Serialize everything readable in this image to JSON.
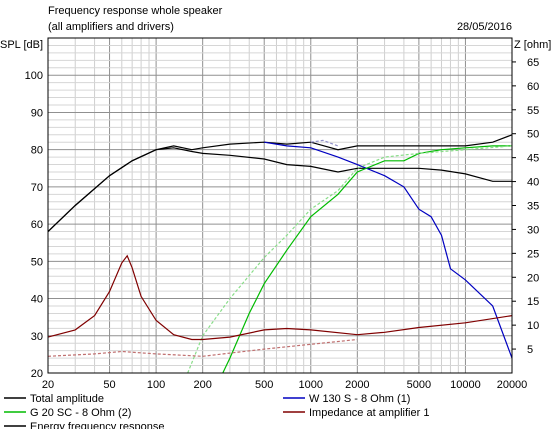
{
  "chart_data": {
    "type": "line",
    "title": "Frequency response whole speaker",
    "subtitle": "(all amplifiers and drivers)",
    "date": "28/05/2016",
    "ylabel_left": "SPL [dB]",
    "ylabel_right": "Z [ohm]",
    "x_scale": "log",
    "xlim": [
      20,
      20000
    ],
    "ylim_left": [
      20,
      110
    ],
    "ylim_right": [
      0,
      70
    ],
    "grid": true,
    "x_ticks": [
      {
        "v": 20,
        "label": "20"
      },
      {
        "v": 50,
        "label": "50"
      },
      {
        "v": 100,
        "label": "100"
      },
      {
        "v": 200,
        "label": "200"
      },
      {
        "v": 500,
        "label": "500"
      },
      {
        "v": 1000,
        "label": "1000"
      },
      {
        "v": 2000,
        "label": "2000"
      },
      {
        "v": 5000,
        "label": "5000"
      },
      {
        "v": 10000,
        "label": "10000"
      },
      {
        "v": 20000,
        "label": "20000"
      }
    ],
    "y_ticks_left": [
      {
        "v": 20,
        "label": "20"
      },
      {
        "v": 30,
        "label": "30"
      },
      {
        "v": 40,
        "label": "40"
      },
      {
        "v": 50,
        "label": "50"
      },
      {
        "v": 60,
        "label": "60"
      },
      {
        "v": 70,
        "label": "70"
      },
      {
        "v": 80,
        "label": "80"
      },
      {
        "v": 90,
        "label": "90"
      },
      {
        "v": 100,
        "label": "100"
      }
    ],
    "y_ticks_right": [
      {
        "v": 5,
        "label": "5"
      },
      {
        "v": 10,
        "label": "10"
      },
      {
        "v": 15,
        "label": "15"
      },
      {
        "v": 20,
        "label": "20"
      },
      {
        "v": 25,
        "label": "25"
      },
      {
        "v": 30,
        "label": "30"
      },
      {
        "v": 35,
        "label": "35"
      },
      {
        "v": 40,
        "label": "40"
      },
      {
        "v": 45,
        "label": "45"
      },
      {
        "v": 50,
        "label": "50"
      },
      {
        "v": 55,
        "label": "55"
      },
      {
        "v": 60,
        "label": "60"
      },
      {
        "v": 65,
        "label": "65"
      }
    ],
    "series": [
      {
        "name": "Total amplitude",
        "color": "#000000",
        "dash": false,
        "axis": "left",
        "points": [
          [
            20,
            58
          ],
          [
            30,
            65
          ],
          [
            50,
            73
          ],
          [
            70,
            77
          ],
          [
            100,
            80
          ],
          [
            130,
            81
          ],
          [
            170,
            80
          ],
          [
            200,
            80.5
          ],
          [
            300,
            81.5
          ],
          [
            500,
            82
          ],
          [
            700,
            81.5
          ],
          [
            1000,
            82
          ],
          [
            1500,
            80
          ],
          [
            2000,
            81
          ],
          [
            3000,
            81
          ],
          [
            5000,
            81
          ],
          [
            7000,
            81
          ],
          [
            10000,
            81
          ],
          [
            15000,
            82
          ],
          [
            20000,
            84
          ]
        ]
      },
      {
        "name": "Energy frequency response",
        "color": "#000000",
        "dash": false,
        "axis": "left",
        "points": [
          [
            20,
            58
          ],
          [
            30,
            65
          ],
          [
            50,
            73
          ],
          [
            70,
            77
          ],
          [
            100,
            80
          ],
          [
            130,
            80.5
          ],
          [
            170,
            79.5
          ],
          [
            200,
            79
          ],
          [
            300,
            78.5
          ],
          [
            500,
            77.5
          ],
          [
            700,
            76
          ],
          [
            1000,
            75.5
          ],
          [
            1500,
            74
          ],
          [
            2000,
            75
          ],
          [
            3000,
            75
          ],
          [
            5000,
            75
          ],
          [
            7000,
            74.5
          ],
          [
            10000,
            73.5
          ],
          [
            15000,
            71.5
          ],
          [
            20000,
            71.5
          ]
        ]
      },
      {
        "name": "W 130 S - 8 Ohm (1)",
        "color": "#0000c0",
        "dash": false,
        "axis": "left",
        "points": [
          [
            500,
            82
          ],
          [
            700,
            81
          ],
          [
            1000,
            80.5
          ],
          [
            1500,
            78
          ],
          [
            2000,
            76
          ],
          [
            3000,
            73
          ],
          [
            4000,
            70
          ],
          [
            5000,
            64
          ],
          [
            6000,
            62
          ],
          [
            7000,
            57
          ],
          [
            8000,
            48
          ],
          [
            10000,
            45
          ],
          [
            15000,
            38
          ],
          [
            20000,
            24
          ]
        ]
      },
      {
        "name": "G 20 SC - 8 Ohm (2)",
        "color": "#00bb00",
        "dash": false,
        "axis": "left",
        "points": [
          [
            270,
            20
          ],
          [
            300,
            24
          ],
          [
            400,
            36
          ],
          [
            500,
            44
          ],
          [
            700,
            53
          ],
          [
            1000,
            62
          ],
          [
            1500,
            68
          ],
          [
            2000,
            74
          ],
          [
            3000,
            77
          ],
          [
            4000,
            77
          ],
          [
            5000,
            79
          ],
          [
            7000,
            80
          ],
          [
            10000,
            80.5
          ],
          [
            15000,
            81
          ],
          [
            20000,
            81
          ]
        ]
      },
      {
        "name": "G 20 SC - 8 Ohm (2)",
        "color": "#88dd88",
        "dash": true,
        "axis": "left",
        "points": [
          [
            160,
            20
          ],
          [
            200,
            30
          ],
          [
            300,
            40
          ],
          [
            500,
            51
          ],
          [
            700,
            57
          ],
          [
            1000,
            64
          ],
          [
            1500,
            69
          ],
          [
            2000,
            75
          ],
          [
            3000,
            78
          ],
          [
            5000,
            79
          ],
          [
            10000,
            80
          ],
          [
            20000,
            81
          ]
        ]
      },
      {
        "name": "W 130 S - 8 Ohm (1)",
        "color": "#9090c8",
        "dash": true,
        "axis": "left",
        "points": [
          [
            1000,
            82
          ],
          [
            1200,
            82.5
          ],
          [
            1500,
            81
          ]
        ]
      },
      {
        "name": "Impedance at amplifier 1",
        "color": "#800000",
        "dash": false,
        "axis": "right",
        "points": [
          [
            20,
            7.5
          ],
          [
            30,
            9
          ],
          [
            40,
            12
          ],
          [
            50,
            17
          ],
          [
            60,
            23
          ],
          [
            65,
            24.5
          ],
          [
            70,
            22
          ],
          [
            80,
            16
          ],
          [
            100,
            11
          ],
          [
            130,
            8
          ],
          [
            170,
            7
          ],
          [
            200,
            7
          ],
          [
            300,
            7.5
          ],
          [
            500,
            9
          ],
          [
            700,
            9.3
          ],
          [
            1000,
            9
          ],
          [
            2000,
            8
          ],
          [
            3000,
            8.5
          ],
          [
            5000,
            9.5
          ],
          [
            10000,
            10.5
          ],
          [
            20000,
            12
          ]
        ]
      },
      {
        "name": "Impedance at amplifier 1",
        "color": "#c07070",
        "dash": true,
        "axis": "right",
        "points": [
          [
            20,
            3.5
          ],
          [
            40,
            4
          ],
          [
            60,
            4.5
          ],
          [
            100,
            4
          ],
          [
            200,
            3.5
          ],
          [
            500,
            5
          ],
          [
            1000,
            6
          ],
          [
            2000,
            7
          ]
        ]
      }
    ],
    "legend": {
      "placement": "bottom",
      "items": [
        {
          "label": "Total amplitude",
          "color": "#000000"
        },
        {
          "label": "W 130 S - 8 Ohm (1)",
          "color": "#0000c0"
        },
        {
          "label": "G 20 SC - 8 Ohm (2)",
          "color": "#00bb00"
        },
        {
          "label": "Impedance at amplifier 1",
          "color": "#800000"
        },
        {
          "label": "Energy frequency response",
          "color": "#000000"
        }
      ]
    }
  }
}
